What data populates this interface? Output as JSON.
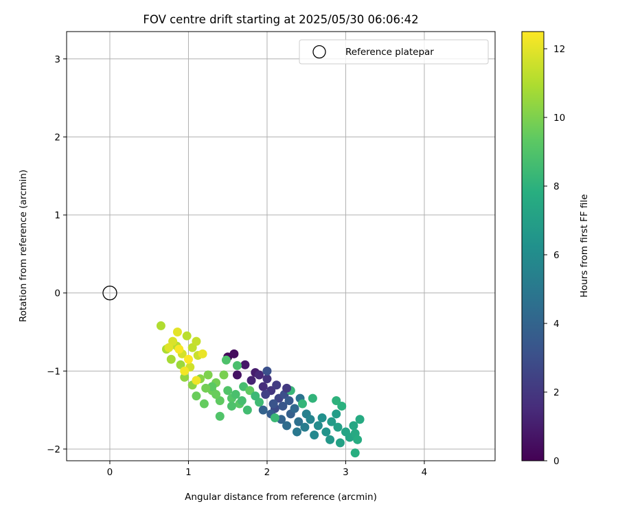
{
  "chart_data": {
    "type": "scatter",
    "title": "FOV centre drift starting at 2025/05/30 06:06:42",
    "xlabel": "Angular distance from reference (arcmin)",
    "ylabel": "Rotation from reference (arcmin)",
    "xlim": [
      -0.55,
      4.9
    ],
    "ylim": [
      -2.15,
      3.35
    ],
    "xticks": [
      0,
      1,
      2,
      3,
      4
    ],
    "xtick_labels": [
      "0",
      "1",
      "2",
      "3",
      "4"
    ],
    "yticks": [
      -2,
      -1,
      0,
      1,
      2,
      3
    ],
    "ytick_labels": [
      "−2",
      "−1",
      "0",
      "1",
      "2",
      "3"
    ],
    "grid": true,
    "legend": {
      "position": "top-right",
      "entries": [
        "Reference platepar"
      ]
    },
    "reference_point": {
      "x": 0,
      "y": 0,
      "label": "Reference platepar"
    },
    "colorbar": {
      "label": "Hours from first FF file",
      "colormap": "viridis",
      "range": [
        0,
        12.5
      ],
      "ticks": [
        0,
        2,
        4,
        6,
        8,
        10,
        12
      ],
      "tick_labels": [
        "0",
        "2",
        "4",
        "6",
        "8",
        "10",
        "12"
      ]
    },
    "points": [
      [
        1.5,
        -0.82,
        0.2
      ],
      [
        1.58,
        -0.78,
        0.4
      ],
      [
        1.62,
        -1.05,
        0.6
      ],
      [
        1.72,
        -0.92,
        0.8
      ],
      [
        1.85,
        -1.02,
        1.0
      ],
      [
        1.8,
        -1.12,
        1.2
      ],
      [
        1.9,
        -1.05,
        1.4
      ],
      [
        1.95,
        -1.2,
        1.6
      ],
      [
        2.0,
        -1.1,
        1.8
      ],
      [
        2.05,
        -1.25,
        2.0
      ],
      [
        2.12,
        -1.18,
        2.2
      ],
      [
        1.98,
        -1.3,
        2.4
      ],
      [
        2.15,
        -1.35,
        2.6
      ],
      [
        2.1,
        -1.48,
        2.8
      ],
      [
        2.22,
        -1.3,
        3.0
      ],
      [
        2.0,
        -1.0,
        3.1
      ],
      [
        2.2,
        -1.45,
        3.3
      ],
      [
        2.28,
        -1.38,
        3.5
      ],
      [
        2.05,
        -1.55,
        3.6
      ],
      [
        2.3,
        -1.55,
        3.8
      ],
      [
        2.18,
        -1.62,
        4.0
      ],
      [
        2.35,
        -1.48,
        4.2
      ],
      [
        2.25,
        -1.7,
        4.4
      ],
      [
        2.4,
        -1.65,
        4.6
      ],
      [
        2.42,
        -1.35,
        4.8
      ],
      [
        2.38,
        -1.78,
        5.0
      ],
      [
        2.48,
        -1.72,
        5.2
      ],
      [
        2.5,
        -1.55,
        5.4
      ],
      [
        2.55,
        -1.62,
        5.6
      ],
      [
        2.6,
        -1.82,
        5.8
      ],
      [
        2.65,
        -1.7,
        6.0
      ],
      [
        2.7,
        -1.6,
        6.2
      ],
      [
        2.75,
        -1.78,
        6.4
      ],
      [
        2.8,
        -1.88,
        6.6
      ],
      [
        2.82,
        -1.65,
        6.8
      ],
      [
        2.88,
        -1.55,
        6.9
      ],
      [
        2.9,
        -1.72,
        7.0
      ],
      [
        2.93,
        -1.92,
        7.1
      ],
      [
        3.0,
        -1.78,
        7.2
      ],
      [
        3.05,
        -1.85,
        7.3
      ],
      [
        3.1,
        -1.7,
        7.4
      ],
      [
        3.12,
        -1.8,
        7.5
      ],
      [
        3.18,
        -1.62,
        7.6
      ],
      [
        3.15,
        -1.88,
        7.7
      ],
      [
        3.12,
        -2.05,
        7.8
      ],
      [
        2.95,
        -1.45,
        7.9
      ],
      [
        2.88,
        -1.38,
        8.0
      ],
      [
        2.58,
        -1.35,
        8.1
      ],
      [
        2.45,
        -1.42,
        8.2
      ],
      [
        2.3,
        -1.25,
        8.3
      ],
      [
        2.1,
        -1.6,
        8.4
      ],
      [
        1.9,
        -1.4,
        8.5
      ],
      [
        1.75,
        -1.5,
        8.6
      ],
      [
        1.7,
        -1.2,
        8.7
      ],
      [
        1.62,
        -0.93,
        8.8
      ],
      [
        1.48,
        -0.86,
        8.9
      ],
      [
        1.4,
        -1.58,
        9.0
      ],
      [
        1.55,
        -1.35,
        9.1
      ],
      [
        1.65,
        -1.42,
        9.2
      ],
      [
        1.78,
        -1.25,
        9.4
      ],
      [
        1.2,
        -1.42,
        9.5
      ],
      [
        1.1,
        -1.32,
        9.6
      ],
      [
        1.3,
        -1.25,
        9.7
      ],
      [
        1.35,
        -1.15,
        9.8
      ],
      [
        1.45,
        -1.05,
        9.9
      ],
      [
        1.25,
        -1.05,
        10.0
      ],
      [
        1.15,
        -1.1,
        10.2
      ],
      [
        1.05,
        -1.18,
        10.3
      ],
      [
        0.95,
        -1.08,
        10.4
      ],
      [
        0.9,
        -0.92,
        10.6
      ],
      [
        0.78,
        -0.85,
        10.8
      ],
      [
        0.72,
        -0.72,
        10.9
      ],
      [
        0.65,
        -0.42,
        11.0
      ],
      [
        0.85,
        -0.68,
        11.1
      ],
      [
        0.98,
        -0.55,
        11.2
      ],
      [
        1.05,
        -0.7,
        11.3
      ],
      [
        1.1,
        -0.62,
        11.4
      ],
      [
        1.12,
        -0.8,
        11.5
      ],
      [
        1.02,
        -0.95,
        11.6
      ],
      [
        0.92,
        -0.78,
        11.7
      ],
      [
        0.8,
        -0.62,
        11.8
      ],
      [
        0.75,
        -0.7,
        11.9
      ],
      [
        0.86,
        -0.5,
        12.0
      ],
      [
        1.18,
        -0.78,
        12.1
      ],
      [
        1.1,
        -1.12,
        12.2
      ],
      [
        0.95,
        -1.0,
        12.3
      ],
      [
        0.88,
        -0.72,
        12.4
      ],
      [
        1.0,
        -0.85,
        12.5
      ],
      [
        1.3,
        -1.2,
        9.3
      ],
      [
        1.5,
        -1.25,
        9.0
      ],
      [
        1.6,
        -1.3,
        8.8
      ],
      [
        1.4,
        -1.38,
        9.4
      ],
      [
        1.22,
        -1.22,
        9.8
      ],
      [
        1.35,
        -1.3,
        9.6
      ],
      [
        1.55,
        -1.45,
        8.9
      ],
      [
        1.68,
        -1.38,
        8.7
      ],
      [
        1.85,
        -1.32,
        8.4
      ],
      [
        1.95,
        -1.5,
        3.9
      ],
      [
        2.08,
        -1.42,
        3.2
      ],
      [
        2.25,
        -1.22,
        2.1
      ]
    ]
  }
}
